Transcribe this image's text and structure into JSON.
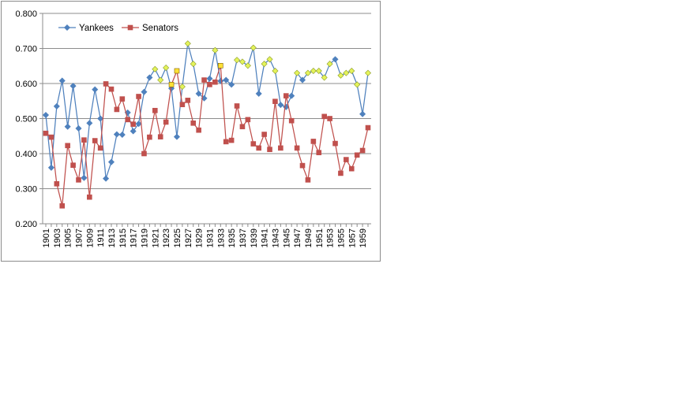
{
  "chart_data": {
    "type": "line",
    "title": "",
    "xlabel": "",
    "ylabel": "",
    "ylim": [
      0.2,
      0.8
    ],
    "yticks": [
      "0.200",
      "0.300",
      "0.400",
      "0.500",
      "0.600",
      "0.700",
      "0.800"
    ],
    "grid": "horizontal",
    "legend": "top-left",
    "x": [
      1901,
      1902,
      1903,
      1904,
      1905,
      1906,
      1907,
      1908,
      1909,
      1910,
      1911,
      1912,
      1913,
      1914,
      1915,
      1916,
      1917,
      1918,
      1919,
      1920,
      1921,
      1922,
      1923,
      1924,
      1925,
      1926,
      1927,
      1928,
      1929,
      1930,
      1931,
      1932,
      1933,
      1934,
      1935,
      1936,
      1937,
      1938,
      1939,
      1940,
      1941,
      1942,
      1943,
      1944,
      1945,
      1946,
      1947,
      1948,
      1949,
      1950,
      1951,
      1952,
      1953,
      1954,
      1955,
      1956,
      1957,
      1958,
      1959,
      1960
    ],
    "series": [
      {
        "name": "Yankees",
        "color": "#4f81bd",
        "marker": "diamond",
        "highlight_color": "#e4f35a",
        "values": [
          0.51,
          0.36,
          0.535,
          0.608,
          0.477,
          0.593,
          0.472,
          0.331,
          0.487,
          0.583,
          0.5,
          0.329,
          0.376,
          0.455,
          0.454,
          0.517,
          0.464,
          0.485,
          0.576,
          0.617,
          0.641,
          0.61,
          0.645,
          0.586,
          0.448,
          0.591,
          0.714,
          0.656,
          0.571,
          0.558,
          0.614,
          0.695,
          0.607,
          0.61,
          0.597,
          0.667,
          0.662,
          0.651,
          0.702,
          0.571,
          0.656,
          0.669,
          0.636,
          0.539,
          0.533,
          0.565,
          0.63,
          0.61,
          0.63,
          0.636,
          0.636,
          0.617,
          0.656,
          0.669,
          0.623,
          0.63,
          0.636,
          0.597,
          0.513,
          0.63
        ],
        "highlight_years": [
          1921,
          1922,
          1923,
          1926,
          1927,
          1928,
          1932,
          1936,
          1937,
          1938,
          1939,
          1941,
          1942,
          1943,
          1947,
          1949,
          1950,
          1951,
          1952,
          1953,
          1955,
          1956,
          1957,
          1958,
          1960
        ]
      },
      {
        "name": "Senators",
        "color": "#c0504d",
        "marker": "square",
        "highlight_color": "#ffe135",
        "values": [
          0.458,
          0.447,
          0.314,
          0.251,
          0.423,
          0.367,
          0.325,
          0.439,
          0.276,
          0.437,
          0.416,
          0.599,
          0.584,
          0.526,
          0.556,
          0.497,
          0.484,
          0.563,
          0.4,
          0.447,
          0.523,
          0.448,
          0.49,
          0.597,
          0.636,
          0.54,
          0.552,
          0.487,
          0.467,
          0.61,
          0.597,
          0.604,
          0.651,
          0.434,
          0.438,
          0.536,
          0.477,
          0.497,
          0.428,
          0.416,
          0.455,
          0.412,
          0.549,
          0.416,
          0.565,
          0.494,
          0.416,
          0.366,
          0.325,
          0.435,
          0.403,
          0.506,
          0.5,
          0.429,
          0.344,
          0.383,
          0.357,
          0.396,
          0.409,
          0.474
        ],
        "highlight_years": [
          1924,
          1925,
          1933
        ]
      }
    ]
  }
}
